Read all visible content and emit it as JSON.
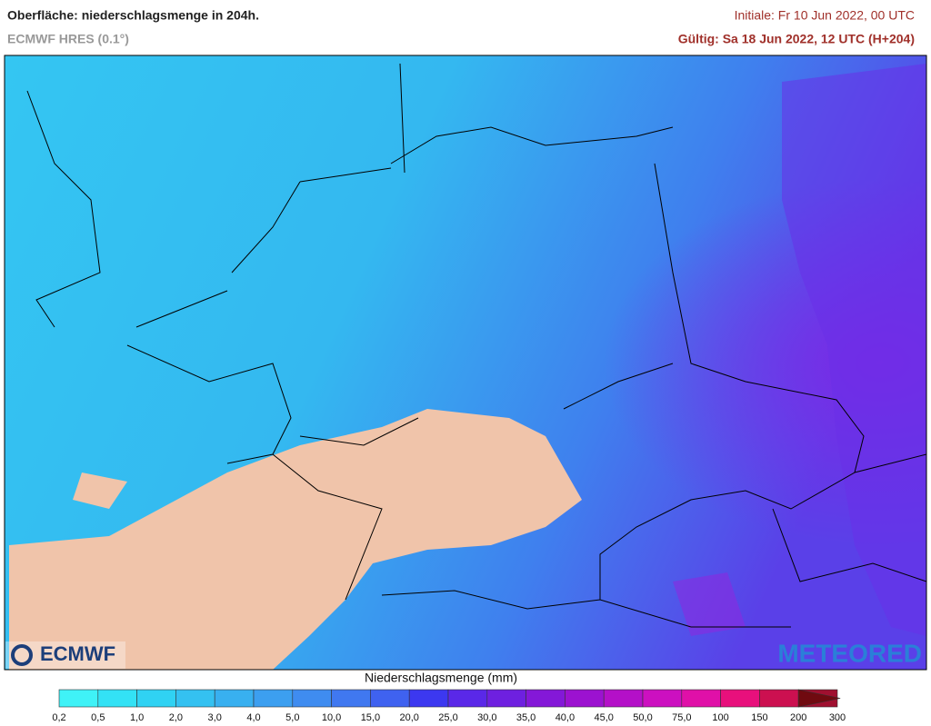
{
  "header": {
    "title": "Oberfläche: niederschlagsmenge in 204h.",
    "subtitle": "ECMWF HRES (0.1°)",
    "initial": "Initiale: Fr 10 Jun 2022, 00 UTC",
    "valid": "Gültig: Sa 18 Jun 2022, 12 UTC (H+204)"
  },
  "logos": {
    "left": "ECMWF",
    "right": "METEORED"
  },
  "legend": {
    "title": "Niederschlagsmenge (mm)",
    "labels": [
      "0,2",
      "0,5",
      "1,0",
      "2,0",
      "3,0",
      "4,0",
      "5,0",
      "10,0",
      "15,0",
      "20,0",
      "25,0",
      "30,0",
      "35,0",
      "40,0",
      "45,0",
      "50,0",
      "75,0",
      "100",
      "150",
      "200",
      "300"
    ],
    "colors": [
      "#3ff2f7",
      "#33e2f5",
      "#30d2f3",
      "#34c1f1",
      "#38b0f0",
      "#3c9ff0",
      "#3f8cf0",
      "#4078f0",
      "#3f62f0",
      "#3c38f0",
      "#5a28e8",
      "#6e20e0",
      "#8418d8",
      "#9c12d0",
      "#b410c8",
      "#cc10c0",
      "#e010a8",
      "#e8107c",
      "#cc1050",
      "#a01030",
      "#700a10"
    ]
  }
}
